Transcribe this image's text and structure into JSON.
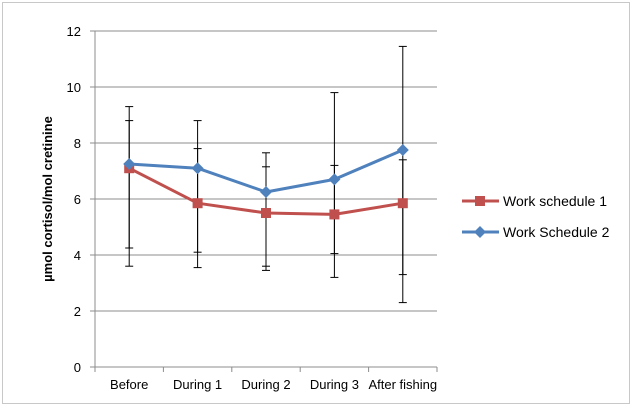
{
  "chart_data": {
    "type": "line",
    "title": "",
    "xlabel": "",
    "ylabel": "µmol cortisol/mol cretinine",
    "ylim": [
      0,
      12
    ],
    "yticks": [
      0,
      2,
      4,
      6,
      8,
      10,
      12
    ],
    "grid": "horizontal",
    "legend_position": "right",
    "categories": [
      "Before",
      "During 1",
      "During 2",
      "During 3",
      "After fishing"
    ],
    "series": [
      {
        "name": "Work schedule 1",
        "color": "#c0504d",
        "marker": "square",
        "values": [
          7.1,
          5.85,
          5.5,
          5.45,
          5.85
        ],
        "error_low": [
          4.25,
          4.1,
          3.6,
          4.05,
          3.3
        ],
        "error_high": [
          8.8,
          7.8,
          7.15,
          7.2,
          7.4
        ]
      },
      {
        "name": "Work Schedule 2",
        "color": "#4f81bd",
        "marker": "diamond",
        "values": [
          7.25,
          7.1,
          6.25,
          6.7,
          7.75
        ],
        "error_low": [
          3.6,
          3.55,
          3.45,
          3.2,
          2.3
        ],
        "error_high": [
          9.3,
          8.8,
          7.65,
          9.8,
          11.45
        ]
      }
    ]
  }
}
